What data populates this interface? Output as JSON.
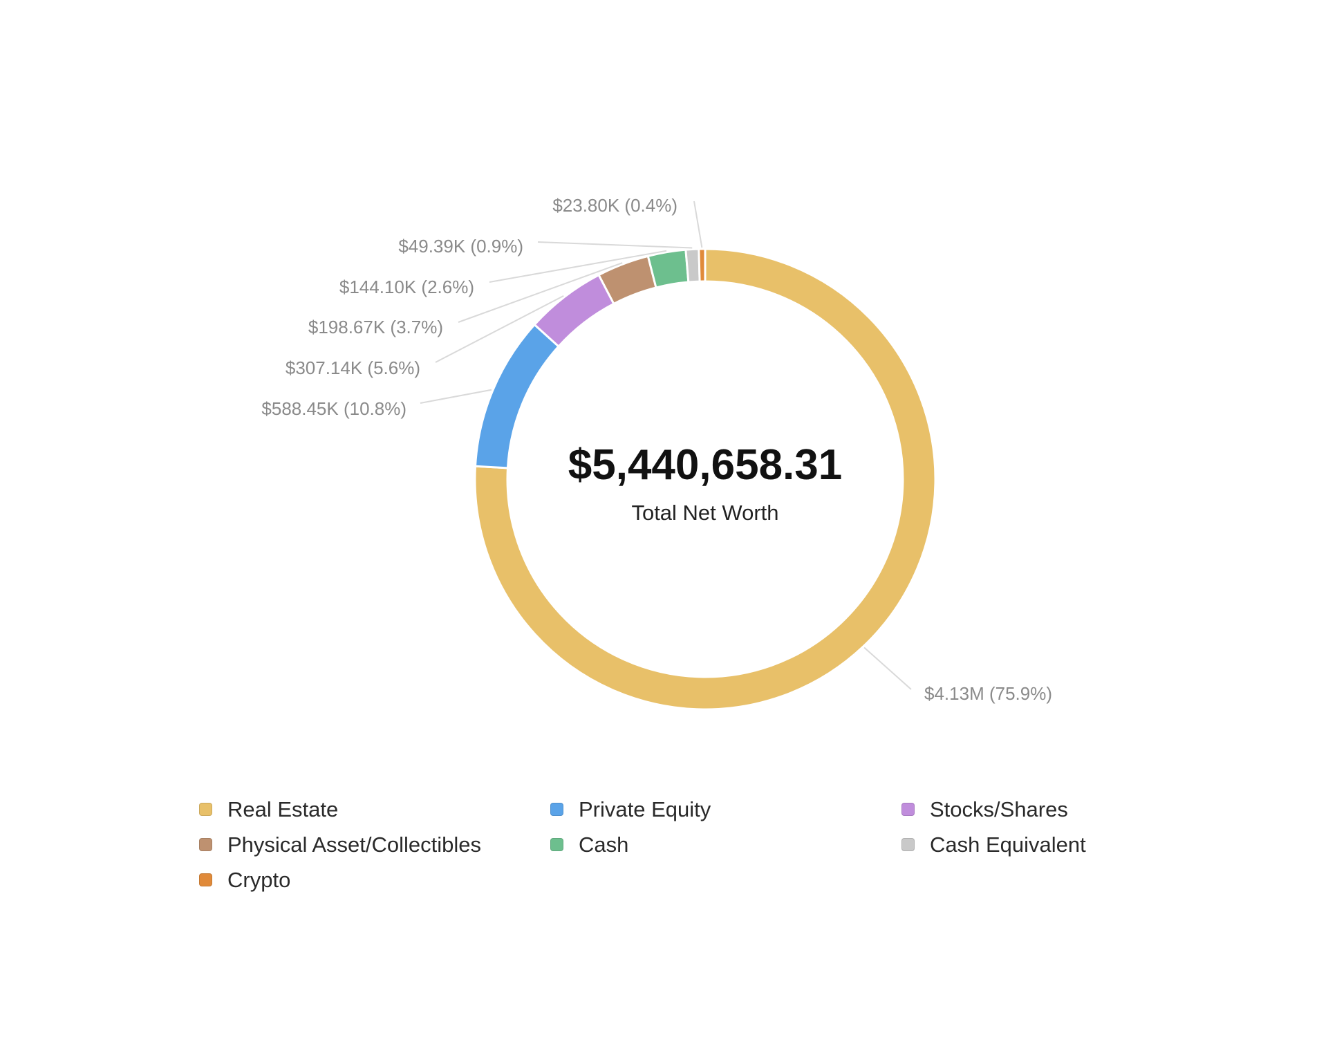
{
  "chart_data": {
    "type": "donut",
    "center": {
      "total": "$5,440,658.31",
      "caption": "Total Net Worth"
    },
    "slices": [
      {
        "name": "Real Estate",
        "value": 4130000,
        "percent": 75.9,
        "label": "$4.13M (75.9%)",
        "color": "#E8C069"
      },
      {
        "name": "Private Equity",
        "value": 588450,
        "percent": 10.8,
        "label": "$588.45K (10.8%)",
        "color": "#5AA3E8"
      },
      {
        "name": "Stocks/Shares",
        "value": 307140,
        "percent": 5.6,
        "label": "$307.14K (5.6%)",
        "color": "#C08DDC"
      },
      {
        "name": "Physical Asset/Collectibles",
        "value": 198670,
        "percent": 3.7,
        "label": "$198.67K (3.7%)",
        "color": "#BE9170"
      },
      {
        "name": "Cash",
        "value": 144100,
        "percent": 2.6,
        "label": "$144.10K (2.6%)",
        "color": "#6DBF8E"
      },
      {
        "name": "Cash Equivalent",
        "value": 49390,
        "percent": 0.9,
        "label": "$49.39K (0.9%)",
        "color": "#C9C9C9"
      },
      {
        "name": "Crypto",
        "value": 23800,
        "percent": 0.4,
        "label": "$23.80K (0.4%)",
        "color": "#E08A3A"
      }
    ],
    "legend": {
      "placement": "bottom",
      "items": [
        {
          "label": "Real Estate",
          "color": "#E8C069"
        },
        {
          "label": "Private Equity",
          "color": "#5AA3E8"
        },
        {
          "label": "Stocks/Shares",
          "color": "#C08DDC"
        },
        {
          "label": "Physical Asset/Collectibles",
          "color": "#BE9170"
        },
        {
          "label": "Cash",
          "color": "#6DBF8E"
        },
        {
          "label": "Cash Equivalent",
          "color": "#C9C9C9"
        },
        {
          "label": "Crypto",
          "color": "#E08A3A"
        }
      ]
    }
  }
}
